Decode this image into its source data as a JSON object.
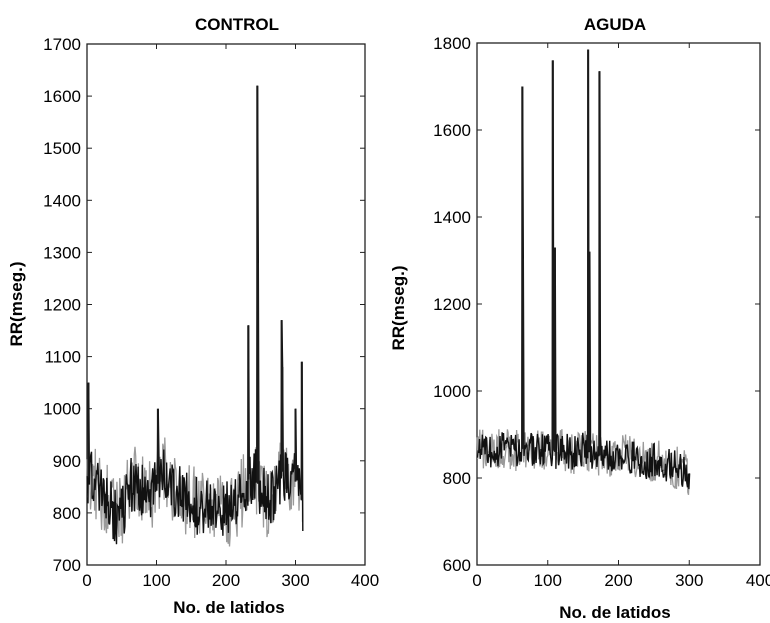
{
  "chart_data": [
    {
      "type": "line",
      "title": "CONTROL",
      "xlabel": "No. de latidos",
      "ylabel": "RR(mseg.)",
      "xlim": [
        0,
        400
      ],
      "ylim": [
        700,
        1700
      ],
      "x_ticks": [
        "0",
        "100",
        "200",
        "300",
        "400"
      ],
      "y_ticks": [
        "700",
        "800",
        "900",
        "1000",
        "1100",
        "1200",
        "1300",
        "1400",
        "1500",
        "1600",
        "1700"
      ],
      "grid": false,
      "baseline": [
        [
          0,
          870
        ],
        [
          10,
          860
        ],
        [
          20,
          830
        ],
        [
          30,
          830
        ],
        [
          40,
          790
        ],
        [
          50,
          800
        ],
        [
          60,
          850
        ],
        [
          70,
          860
        ],
        [
          80,
          840
        ],
        [
          90,
          830
        ],
        [
          100,
          850
        ],
        [
          110,
          880
        ],
        [
          120,
          860
        ],
        [
          130,
          840
        ],
        [
          140,
          820
        ],
        [
          150,
          830
        ],
        [
          160,
          810
        ],
        [
          170,
          820
        ],
        [
          180,
          800
        ],
        [
          190,
          800
        ],
        [
          200,
          810
        ],
        [
          210,
          800
        ],
        [
          220,
          830
        ],
        [
          230,
          860
        ],
        [
          240,
          880
        ],
        [
          250,
          840
        ],
        [
          260,
          820
        ],
        [
          270,
          840
        ],
        [
          280,
          880
        ],
        [
          290,
          870
        ],
        [
          300,
          860
        ],
        [
          310,
          820
        ]
      ],
      "spikes": [
        {
          "x": 2,
          "y": 1050
        },
        {
          "x": 102,
          "y": 1000
        },
        {
          "x": 232,
          "y": 1160
        },
        {
          "x": 245,
          "y": 1620
        },
        {
          "x": 246,
          "y": 1280
        },
        {
          "x": 280,
          "y": 1170
        },
        {
          "x": 281,
          "y": 1080
        },
        {
          "x": 300,
          "y": 1000
        },
        {
          "x": 309,
          "y": 1090
        }
      ],
      "band_halfwidth": 70
    },
    {
      "type": "line",
      "title": "AGUDA",
      "xlabel": "No. de latidos",
      "ylabel": "RR(mseg.)",
      "xlim": [
        0,
        400
      ],
      "ylim": [
        600,
        1800
      ],
      "x_ticks": [
        "0",
        "100",
        "200",
        "300",
        "400"
      ],
      "y_ticks": [
        "600",
        "800",
        "1000",
        "1200",
        "1400",
        "1600",
        "1800"
      ],
      "grid": false,
      "baseline": [
        [
          0,
          880
        ],
        [
          10,
          870
        ],
        [
          20,
          860
        ],
        [
          30,
          865
        ],
        [
          40,
          870
        ],
        [
          50,
          860
        ],
        [
          60,
          865
        ],
        [
          70,
          870
        ],
        [
          80,
          860
        ],
        [
          90,
          865
        ],
        [
          100,
          870
        ],
        [
          110,
          860
        ],
        [
          120,
          865
        ],
        [
          130,
          860
        ],
        [
          140,
          855
        ],
        [
          150,
          865
        ],
        [
          160,
          860
        ],
        [
          170,
          855
        ],
        [
          180,
          845
        ],
        [
          190,
          850
        ],
        [
          200,
          855
        ],
        [
          210,
          850
        ],
        [
          220,
          845
        ],
        [
          230,
          840
        ],
        [
          240,
          835
        ],
        [
          250,
          840
        ],
        [
          260,
          835
        ],
        [
          270,
          830
        ],
        [
          280,
          825
        ],
        [
          290,
          820
        ],
        [
          300,
          810
        ]
      ],
      "spikes": [
        {
          "x": 64,
          "y": 1700
        },
        {
          "x": 65,
          "y": 1305
        },
        {
          "x": 107,
          "y": 1760
        },
        {
          "x": 110,
          "y": 1330
        },
        {
          "x": 157,
          "y": 1785
        },
        {
          "x": 159,
          "y": 1320
        },
        {
          "x": 173,
          "y": 1735
        }
      ],
      "band_halfwidth": 50
    }
  ]
}
